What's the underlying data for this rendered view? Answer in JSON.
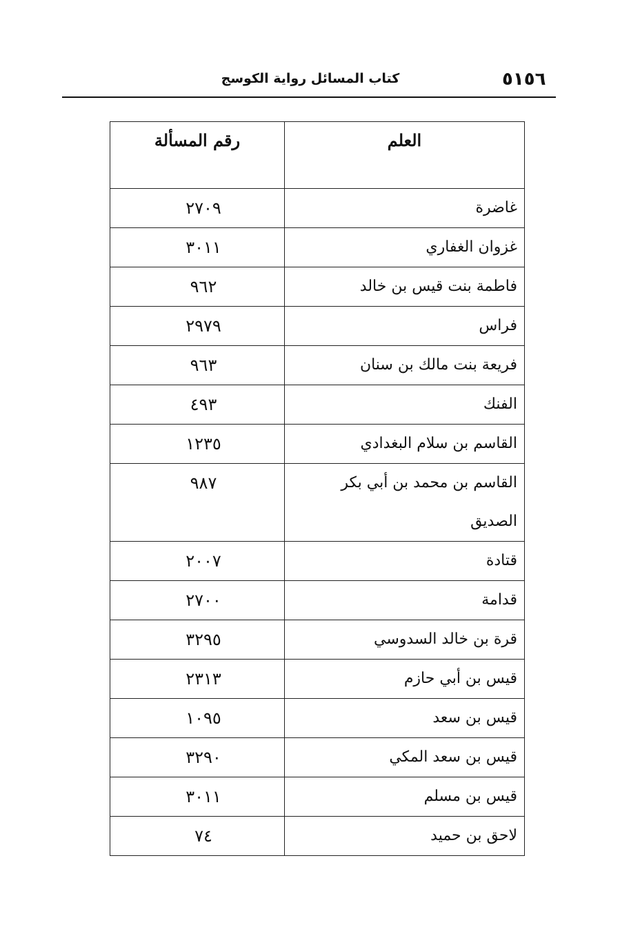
{
  "header": {
    "page_number": "٥١٥٦",
    "book_title": "كتاب المسائل رواية الكوسج"
  },
  "table": {
    "columns": [
      "العلم",
      "رقم المسألة"
    ],
    "rows": [
      {
        "name": "غاضرة",
        "number": "٢٧٠٩"
      },
      {
        "name": "غزوان الغفاري",
        "number": "٣٠١١"
      },
      {
        "name": "فاطمة بنت قيس بن خالد",
        "number": "٩٦٢"
      },
      {
        "name": "فراس",
        "number": "٢٩٧٩"
      },
      {
        "name": "فريعة بنت مالك بن سنان",
        "number": "٩٦٣"
      },
      {
        "name": "الفنك",
        "number": "٤٩٣"
      },
      {
        "name": "القاسم بن سلام البغدادي",
        "number": "١٢٣٥"
      },
      {
        "name": "القاسم بن محمد بن أبي بكر الصديق",
        "number": "٩٨٧"
      },
      {
        "name": "قتادة",
        "number": "٢٠٠٧"
      },
      {
        "name": "قدامة",
        "number": "٢٧٠٠"
      },
      {
        "name": "قرة بن خالد السدوسي",
        "number": "٣٢٩٥"
      },
      {
        "name": "قيس بن أبي حازم",
        "number": "٢٣١٣"
      },
      {
        "name": "قيس بن سعد",
        "number": "١٠٩٥"
      },
      {
        "name": "قيس بن سعد المكي",
        "number": "٣٢٩٠"
      },
      {
        "name": "قيس بن مسلم",
        "number": "٣٠١١"
      },
      {
        "name": "لاحق بن حميد",
        "number": "٧٤"
      }
    ]
  }
}
